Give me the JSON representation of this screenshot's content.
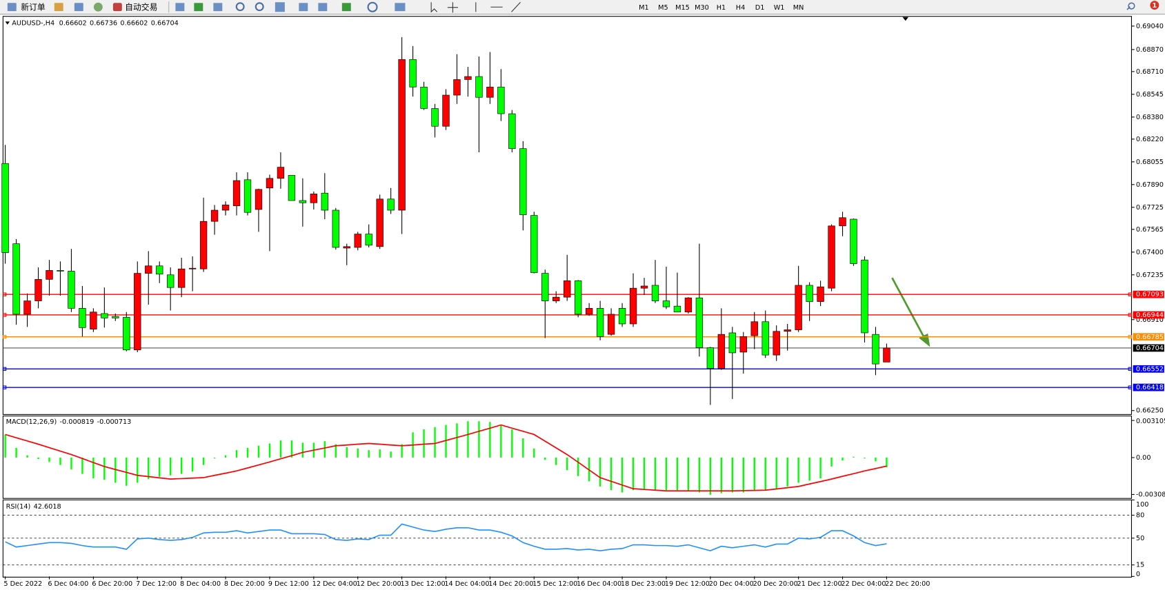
{
  "toolbar": {
    "buttons": [
      "新订单",
      "自动交易"
    ],
    "timeframes": [
      "M1",
      "M5",
      "M15",
      "M30",
      "H1",
      "H4",
      "D1",
      "W1",
      "MN"
    ],
    "notifications": 1
  },
  "chart_data": [
    {
      "type": "candlestick",
      "title": "AUDUSD-,H4",
      "up_color": "#ff0000",
      "down_color": "#00ff00",
      "categories": [
        "5 Dec 2022",
        null,
        null,
        null,
        "6 Dec 04:00",
        null,
        null,
        null,
        "6 Dec 20:00",
        null,
        null,
        null,
        "7 Dec 12:00",
        null,
        null,
        null,
        "8 Dec 04:00",
        null,
        null,
        null,
        "8 Dec 20:00",
        null,
        null,
        null,
        "9 Dec 12:00",
        null,
        null,
        null,
        "12 Dec 04:00",
        null,
        null,
        null,
        "12 Dec 20:00",
        null,
        null,
        null,
        "13 Dec 12:00",
        null,
        null,
        null,
        "14 Dec 04:00",
        null,
        null,
        null,
        "14 Dec 20:00",
        null,
        null,
        null,
        "15 Dec 12:00",
        null,
        null,
        null,
        "16 Dec 04:00",
        null,
        null,
        null,
        "18 Dec 23:00",
        null,
        null,
        null,
        "19 Dec 12:00",
        null,
        null,
        null,
        "20 Dec 04:00",
        null,
        null,
        null,
        "20 Dec 20:00",
        null,
        null,
        null,
        "21 Dec 12:00",
        null,
        null,
        null,
        "22 Dec 04:00",
        null,
        null,
        null,
        "22 Dec 20:00"
      ],
      "open": [
        0.68043,
        0.67461,
        0.66949,
        0.67046,
        0.67202,
        0.67267,
        0.67262,
        0.66992,
        0.66841,
        0.66954,
        0.66933,
        0.66927,
        0.6669,
        0.67246,
        0.673,
        0.67235,
        0.67143,
        0.67278,
        0.67278,
        0.67623,
        0.67704,
        0.67736,
        0.67925,
        0.67709,
        0.67865,
        0.67935,
        0.67957,
        0.67774,
        0.67758,
        0.67828,
        0.67704,
        0.67429,
        0.67434,
        0.67531,
        0.6744,
        0.67785,
        0.67704,
        0.68798,
        0.68598,
        0.68442,
        0.68313,
        0.68539,
        0.68652,
        0.68674,
        0.68523,
        0.68598,
        0.68404,
        0.68151,
        0.67666,
        0.67246,
        0.67046,
        0.67073,
        0.67192,
        0.66949,
        0.66992,
        0.66803,
        0.66992,
        0.66879,
        0.67138,
        0.67159,
        0.67046,
        0.67008,
        0.66965,
        0.67068,
        0.66706,
        0.66556,
        0.66814,
        0.66674,
        0.66793,
        0.66895,
        0.66653,
        0.66825,
        0.66836,
        0.67159,
        0.67041,
        0.67138,
        0.6759,
        0.67639,
        0.67343,
        0.66803,
        0.66602
      ],
      "high": [
        0.68178,
        0.67494,
        0.671,
        0.67289,
        0.67343,
        0.67332,
        0.67423,
        0.67154,
        0.66992,
        0.67143,
        0.66954,
        0.66965,
        0.67332,
        0.67407,
        0.67332,
        0.67289,
        0.67359,
        0.67369,
        0.67795,
        0.67742,
        0.67768,
        0.67979,
        0.67979,
        0.6786,
        0.67962,
        0.68124,
        0.67957,
        0.67935,
        0.67839,
        0.67973,
        0.6772,
        0.67461,
        0.67547,
        0.67601,
        0.67817,
        0.67865,
        0.6896,
        0.68895,
        0.68636,
        0.68475,
        0.68582,
        0.68836,
        0.68744,
        0.68819,
        0.68852,
        0.68728,
        0.68431,
        0.68205,
        0.67693,
        0.67273,
        0.67116,
        0.6738,
        0.67197,
        0.6703,
        0.67046,
        0.66992,
        0.6703,
        0.67246,
        0.67213,
        0.67343,
        0.67294,
        0.67251,
        0.67073,
        0.67461,
        0.66712,
        0.66992,
        0.66857,
        0.6682,
        0.66965,
        0.66976,
        0.66868,
        0.66879,
        0.673,
        0.67181,
        0.67192,
        0.67601,
        0.67693,
        0.67644,
        0.67369,
        0.66857,
        0.66736
      ],
      "low": [
        0.67316,
        0.66873,
        0.66857,
        0.66992,
        0.67084,
        0.67084,
        0.66965,
        0.66787,
        0.6682,
        0.66852,
        0.669,
        0.6668,
        0.66674,
        0.67019,
        0.67175,
        0.66976,
        0.67073,
        0.67116,
        0.67256,
        0.67526,
        0.67666,
        0.67666,
        0.67666,
        0.67547,
        0.67407,
        0.6786,
        0.67774,
        0.67585,
        0.67709,
        0.67639,
        0.67418,
        0.67305,
        0.67413,
        0.67434,
        0.67423,
        0.67677,
        0.67531,
        0.68528,
        0.68431,
        0.68232,
        0.68286,
        0.68475,
        0.68528,
        0.68124,
        0.68475,
        0.68351,
        0.68124,
        0.67558,
        0.67246,
        0.66776,
        0.6703,
        0.67046,
        0.66927,
        0.66938,
        0.6676,
        0.66793,
        0.66857,
        0.66857,
        0.67089,
        0.6703,
        0.66987,
        0.66965,
        0.66954,
        0.66642,
        0.66291,
        0.66545,
        0.66334,
        0.66518,
        0.66696,
        0.66632,
        0.6661,
        0.66685,
        0.6682,
        0.669,
        0.67008,
        0.67116,
        0.67515,
        0.673,
        0.66744,
        0.66507,
        0.66602
      ],
      "close": [
        0.67396,
        0.66949,
        0.67046,
        0.67202,
        0.67267,
        0.67262,
        0.66992,
        0.66852,
        0.66965,
        0.66922,
        0.66922,
        0.6669,
        0.67246,
        0.673,
        0.6724,
        0.67143,
        0.67278,
        0.67283,
        0.67623,
        0.67704,
        0.67742,
        0.67919,
        0.67688,
        0.67855,
        0.67935,
        0.68016,
        0.67774,
        0.67758,
        0.67822,
        0.67704,
        0.67434,
        0.6744,
        0.67531,
        0.6745,
        0.67785,
        0.67704,
        0.68798,
        0.68598,
        0.68442,
        0.68313,
        0.68539,
        0.68652,
        0.68674,
        0.68523,
        0.68598,
        0.68404,
        0.68151,
        0.67671,
        0.67251,
        0.67046,
        0.67073,
        0.67192,
        0.66949,
        0.66992,
        0.66787,
        0.66949,
        0.66879,
        0.67138,
        0.67154,
        0.67046,
        0.67003,
        0.66965,
        0.67068,
        0.66706,
        0.66556,
        0.66803,
        0.66669,
        0.66787,
        0.66895,
        0.66653,
        0.66825,
        0.66836,
        0.67159,
        0.67041,
        0.67148,
        0.6759,
        0.6765,
        0.67316,
        0.66814,
        0.66588,
        0.66704
      ],
      "ylim": [
        0.66227,
        0.691
      ],
      "yticks": [
        {
          "value": 0.6904,
          "label": "0.69040"
        },
        {
          "value": 0.6887,
          "label": "0.68870"
        },
        {
          "value": 0.6871,
          "label": "0.68710"
        },
        0.68545,
        {
          "value": 0.6838,
          "label": "0.68380"
        },
        {
          "value": 0.6822,
          "label": "0.68220"
        },
        0.68055,
        {
          "value": 0.6789,
          "label": "0.67890"
        },
        0.67725,
        0.67565,
        {
          "value": 0.674,
          "label": "0.67400"
        },
        0.67235,
        {
          "value": 0.6691,
          "label": "0.66910"
        },
        {
          "value": 0.6625,
          "label": "0.66250"
        }
      ],
      "levels": [
        {
          "value": 0.67093,
          "color": "#ff0000"
        },
        {
          "value": 0.66944,
          "color": "#ff0000"
        },
        {
          "value": 0.66785,
          "color": "#ff8c00"
        },
        {
          "value": 0.66552,
          "color": "#0000ff"
        },
        {
          "value": 0.66418,
          "color": "#0000ff"
        }
      ]
    },
    {
      "type": "macd",
      "title": "MACD(12,26,9)",
      "histogram_color": "#00ff00",
      "signal_color": "#ff0000",
      "histogram": [
        0.00193,
        0.00081,
        0.00019,
        -0.00012,
        -0.00037,
        -0.00062,
        -0.00099,
        -0.00137,
        -0.00174,
        -0.00186,
        -0.00211,
        -0.00236,
        -0.00211,
        -0.0018,
        -0.00161,
        -0.00149,
        -0.00137,
        -0.00118,
        -0.00062,
        -6e-05,
        0.00019,
        0.00062,
        0.00081,
        0.00099,
        0.00118,
        0.00143,
        0.00143,
        0.00124,
        0.00124,
        0.00137,
        0.00112,
        0.00087,
        0.00075,
        0.00062,
        0.00068,
        0.0005,
        0.00112,
        0.00211,
        0.00236,
        0.00255,
        0.00273,
        0.00286,
        0.00304,
        0.00304,
        0.00298,
        0.00267,
        0.00236,
        0.00161,
        0.00075,
        -0.00019,
        -0.00062,
        -0.00106,
        -0.00155,
        -0.00199,
        -0.00242,
        -0.00273,
        -0.00292,
        -0.00273,
        -0.00267,
        -0.00273,
        -0.00273,
        -0.00273,
        -0.00279,
        -0.00292,
        -0.00311,
        -0.00298,
        -0.00292,
        -0.00292,
        -0.00273,
        -0.00273,
        -0.00261,
        -0.00242,
        -0.00211,
        -0.00193,
        -0.00174,
        -0.00075,
        -0.00025,
        6e-05,
        -6e-05,
        -0.00031,
        -0.000819
      ],
      "signal": [
        0.00193,
        0.00166,
        0.00139,
        0.00112,
        0.00083,
        0.00054,
        0.00025,
        -8e-05,
        -0.00042,
        -0.00075,
        -0.001,
        -0.00124,
        -0.00149,
        -0.00159,
        -0.0017,
        -0.0018,
        -0.00176,
        -0.00172,
        -0.00168,
        -0.00149,
        -0.00131,
        -0.00112,
        -0.00087,
        -0.00062,
        -0.00037,
        -0.0001,
        0.00016,
        0.00043,
        0.00062,
        0.0008,
        0.00099,
        0.00105,
        0.00112,
        0.00118,
        0.00112,
        0.00105,
        0.00099,
        0.00105,
        0.00112,
        0.00118,
        0.00143,
        0.00168,
        0.00193,
        0.0022,
        0.00246,
        0.00273,
        0.00246,
        0.0022,
        0.00193,
        0.00137,
        0.00081,
        0.00025,
        -0.00039,
        -0.00104,
        -0.00168,
        -0.00199,
        -0.0023,
        -0.00261,
        -0.00267,
        -0.00273,
        -0.00279,
        -0.00279,
        -0.00279,
        -0.00279,
        -0.00279,
        -0.00279,
        -0.00279,
        -0.00277,
        -0.00275,
        -0.00273,
        -0.00263,
        -0.00252,
        -0.00242,
        -0.00221,
        -0.00201,
        -0.0018,
        -0.00157,
        -0.00135,
        -0.00112,
        -0.00092,
        -0.000713
      ],
      "ylim": [
        -0.00342,
        0.00342
      ],
      "yticks": [
        0.003105,
        {
          "value": 0,
          "label": "0.00"
        },
        -0.003089
      ]
    },
    {
      "type": "line",
      "title": "RSI(14)",
      "color": "#1e90ff",
      "values": [
        45.2,
        38.4,
        40.3,
        42.3,
        44.2,
        44.2,
        43.2,
        40.3,
        38.4,
        38.4,
        38.4,
        35.5,
        49.0,
        50.0,
        48.1,
        47.1,
        48.1,
        51.0,
        56.8,
        57.7,
        57.7,
        59.7,
        56.8,
        58.7,
        60.6,
        60.6,
        55.8,
        55.8,
        55.8,
        54.8,
        48.1,
        47.1,
        49.0,
        48.1,
        53.9,
        53.9,
        68.4,
        64.5,
        60.6,
        58.7,
        61.6,
        63.6,
        63.6,
        60.6,
        60.6,
        57.7,
        52.9,
        44.2,
        39.4,
        35.5,
        35.5,
        36.4,
        34.5,
        35.5,
        33.5,
        35.5,
        36.4,
        41.3,
        41.3,
        40.3,
        40.3,
        39.4,
        41.3,
        37.4,
        33.5,
        39.4,
        37.4,
        39.4,
        41.3,
        38.4,
        42.3,
        42.3,
        50.0,
        49.0,
        51.0,
        59.7,
        59.7,
        52.9,
        44.2,
        40.3,
        42.6018
      ],
      "ylim": [
        0,
        100
      ],
      "yticks": [
        100,
        80,
        50,
        15,
        0
      ],
      "levels": [
        80,
        50,
        15
      ]
    }
  ]
}
